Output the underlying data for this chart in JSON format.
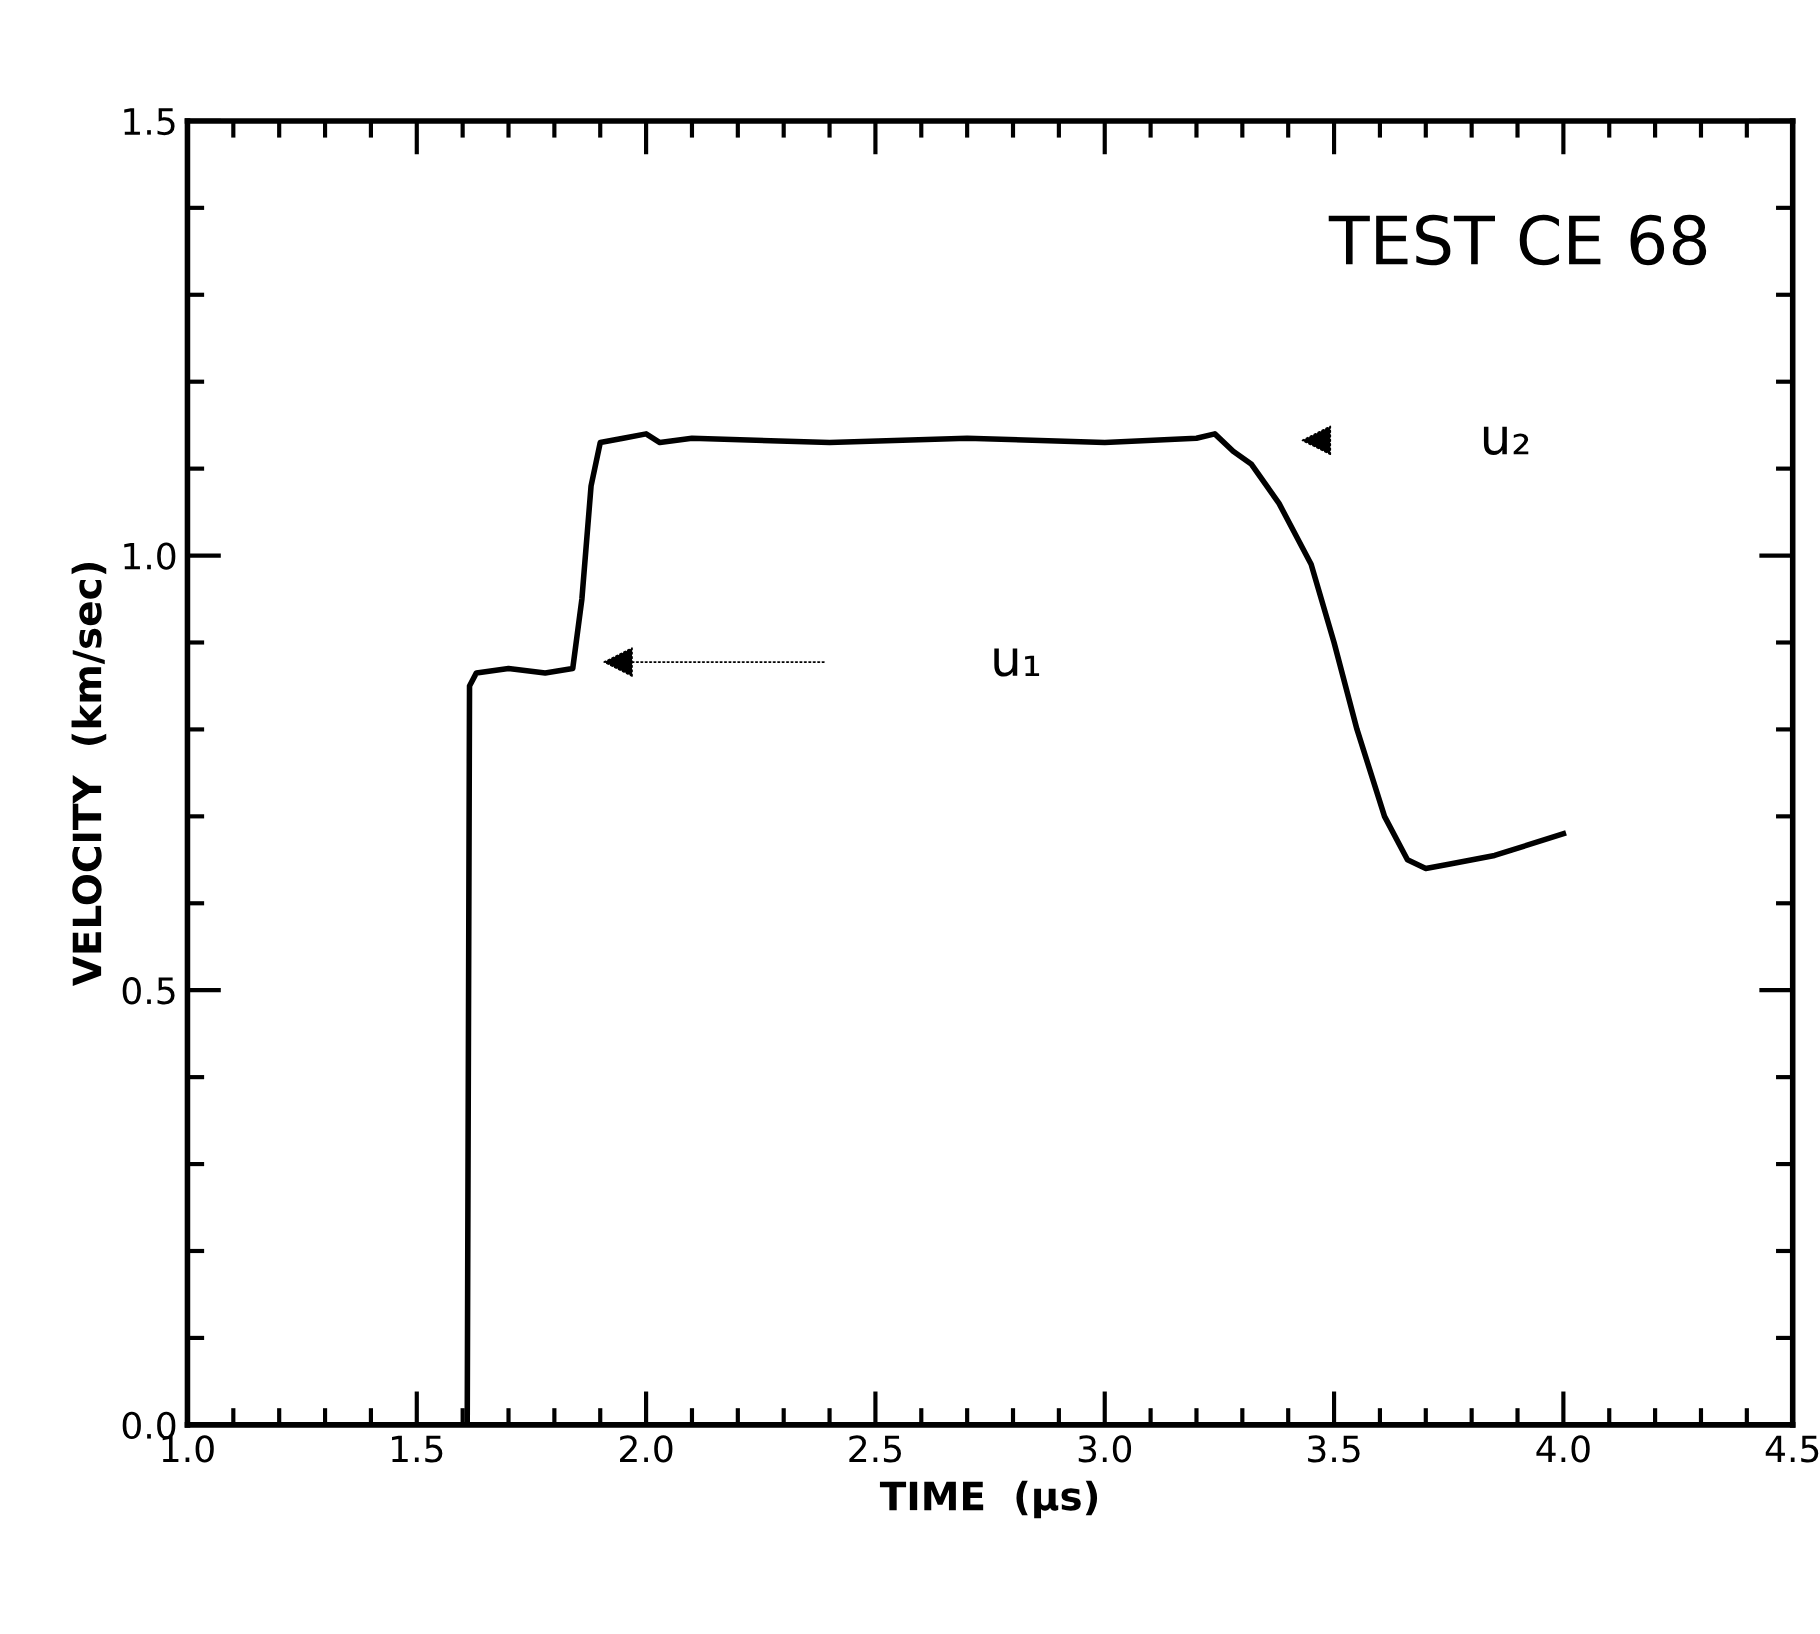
{
  "chart_data": {
    "type": "line",
    "title": "TEST CE 68",
    "xlabel": "TIME  (μs)",
    "ylabel": "VELOCITY  (km/sec)",
    "x": [
      1.6,
      1.61,
      1.615,
      1.63,
      1.7,
      1.78,
      1.84,
      1.86,
      1.88,
      1.9,
      1.95,
      2.0,
      2.03,
      2.1,
      2.4,
      2.7,
      3.0,
      3.2,
      3.24,
      3.28,
      3.32,
      3.38,
      3.45,
      3.5,
      3.55,
      3.61,
      3.66,
      3.7,
      3.75,
      3.85,
      4.0
    ],
    "series": [
      {
        "color": "#000000",
        "values": [
          0.0,
          0.0,
          0.85,
          0.865,
          0.87,
          0.865,
          0.87,
          0.95,
          1.08,
          1.13,
          1.135,
          1.14,
          1.13,
          1.135,
          1.13,
          1.135,
          1.13,
          1.135,
          1.14,
          1.12,
          1.105,
          1.06,
          0.99,
          0.9,
          0.8,
          0.7,
          0.65,
          0.64,
          0.645,
          0.655,
          0.68
        ]
      }
    ],
    "xlim": [
      1.0,
      4.5
    ],
    "ylim": [
      0.0,
      1.5
    ],
    "xticks": [
      {
        "value": 1.0,
        "label": "1.0"
      },
      {
        "value": 1.1,
        "label": null
      },
      {
        "value": 1.2,
        "label": null
      },
      {
        "value": 1.3,
        "label": null
      },
      {
        "value": 1.4,
        "label": null
      },
      1.5,
      {
        "value": 1.6,
        "label": null
      },
      {
        "value": 1.7,
        "label": null
      },
      {
        "value": 1.8,
        "label": null
      },
      {
        "value": 1.9,
        "label": null
      },
      {
        "value": 2.0,
        "label": "2.0"
      },
      {
        "value": 2.1,
        "label": null
      },
      {
        "value": 2.2,
        "label": null
      },
      {
        "value": 2.3,
        "label": null
      },
      {
        "value": 2.4,
        "label": null
      },
      2.5,
      {
        "value": 2.6,
        "label": null
      },
      {
        "value": 2.7,
        "label": null
      },
      {
        "value": 2.8,
        "label": null
      },
      {
        "value": 2.9,
        "label": null
      },
      {
        "value": 3.0,
        "label": "3.0"
      },
      {
        "value": 3.1,
        "label": null
      },
      {
        "value": 3.2,
        "label": null
      },
      {
        "value": 3.3,
        "label": null
      },
      {
        "value": 3.4,
        "label": null
      },
      3.5,
      {
        "value": 3.6,
        "label": null
      },
      {
        "value": 3.7,
        "label": null
      },
      {
        "value": 3.8,
        "label": null
      },
      {
        "value": 3.9,
        "label": null
      },
      {
        "value": 4.0,
        "label": "4.0"
      },
      {
        "value": 4.1,
        "label": null
      },
      {
        "value": 4.2,
        "label": null
      },
      {
        "value": 4.3,
        "label": null
      },
      {
        "value": 4.4,
        "label": null
      },
      4.5
    ],
    "yticks": [
      {
        "value": 0.0,
        "label": "0.0"
      },
      {
        "value": 0.1,
        "label": null
      },
      {
        "value": 0.2,
        "label": null
      },
      {
        "value": 0.3,
        "label": null
      },
      {
        "value": 0.4,
        "label": null
      },
      0.5,
      {
        "value": 0.6,
        "label": null
      },
      {
        "value": 0.7,
        "label": null
      },
      {
        "value": 0.8,
        "label": null
      },
      {
        "value": 0.9,
        "label": null
      },
      {
        "value": 1.0,
        "label": "1.0"
      },
      {
        "value": 1.1,
        "label": null
      },
      {
        "value": 1.2,
        "label": null
      },
      {
        "value": 1.3,
        "label": null
      },
      {
        "value": 1.4,
        "label": null
      },
      1.5
    ],
    "annotations": [
      "u₁",
      "u₂"
    ],
    "grid": false,
    "legend": false,
    "marker": "none",
    "line_style": "solid"
  }
}
